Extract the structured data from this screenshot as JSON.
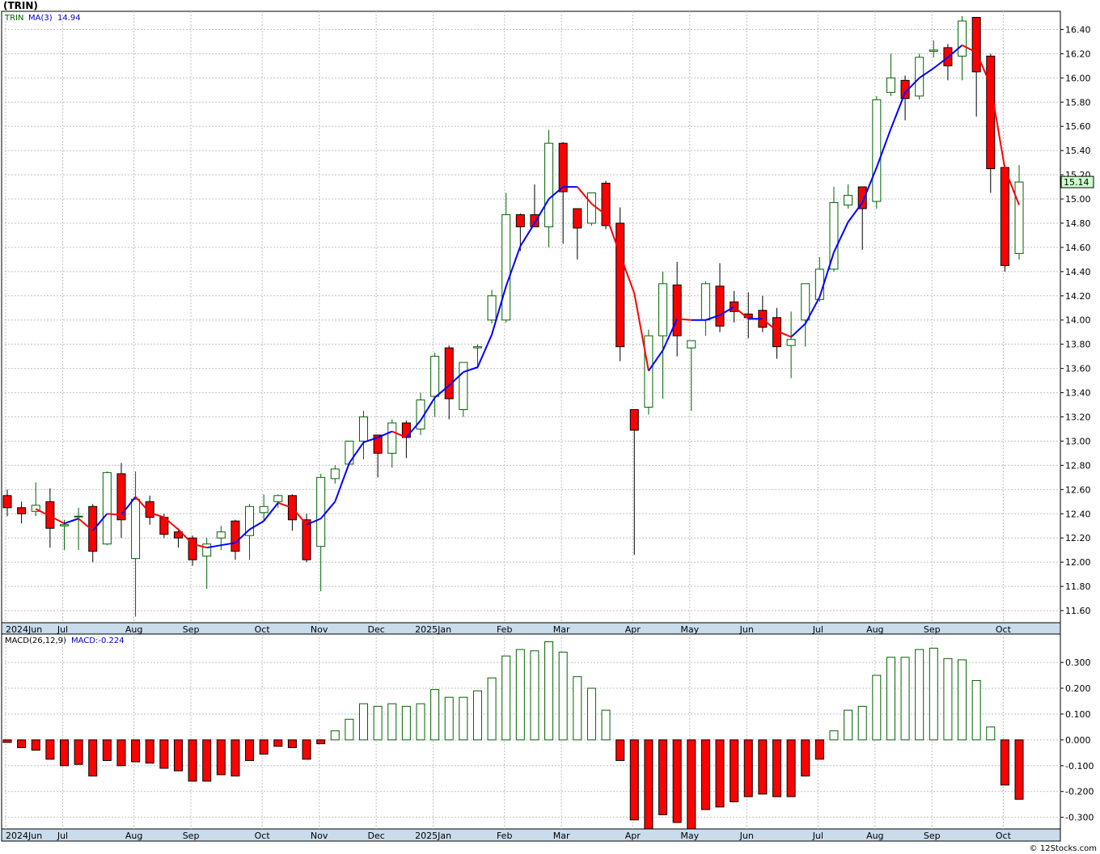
{
  "title": "(TRIN)",
  "credit": "© 12Stocks.com",
  "colors": {
    "up": "#006400",
    "down_fill": "#ff0000",
    "ma_up": "#0000ff",
    "ma_down": "#ff0000",
    "grid": "#c0c0c0",
    "axis_strip": "#c8dcec",
    "last_price_bg": "#ccffcc"
  },
  "chart_data": [
    {
      "type": "candlestick",
      "legend": {
        "symbol": "TRIN",
        "ma_label": "MA(3)",
        "ma_value": "14.94"
      },
      "last_price_label": "15.14",
      "y_ticks": [
        "16.40",
        "16.20",
        "16.00",
        "15.80",
        "15.60",
        "15.40",
        "15.20",
        "15.00",
        "14.80",
        "14.60",
        "14.40",
        "14.20",
        "14.00",
        "13.80",
        "13.60",
        "13.40",
        "13.20",
        "13.00",
        "12.80",
        "12.60",
        "12.40",
        "12.20",
        "12.00",
        "11.80",
        "11.60"
      ],
      "ylim": [
        11.5,
        16.55
      ],
      "x_month_labels": [
        {
          "label": "2024Jun",
          "week": 0
        },
        {
          "label": "Jul",
          "week": 4
        },
        {
          "label": "Aug",
          "week": 9
        },
        {
          "label": "Sep",
          "week": 13
        },
        {
          "label": "Oct",
          "week": 18
        },
        {
          "label": "Nov",
          "week": 22
        },
        {
          "label": "Dec",
          "week": 26
        },
        {
          "label": "2025Jan",
          "week": 30
        },
        {
          "label": "Feb",
          "week": 35
        },
        {
          "label": "Mar",
          "week": 39
        },
        {
          "label": "Apr",
          "week": 44
        },
        {
          "label": "May",
          "week": 48
        },
        {
          "label": "Jun",
          "week": 52
        },
        {
          "label": "Jul",
          "week": 57
        },
        {
          "label": "Aug",
          "week": 61
        },
        {
          "label": "Sep",
          "week": 65
        },
        {
          "label": "Oct",
          "week": 70
        }
      ],
      "ohlc": [
        [
          12.55,
          12.6,
          12.38,
          12.45
        ],
        [
          12.45,
          12.5,
          12.32,
          12.4
        ],
        [
          12.42,
          12.66,
          12.38,
          12.47
        ],
        [
          12.5,
          12.61,
          12.12,
          12.28
        ],
        [
          12.3,
          12.35,
          12.1,
          12.31
        ],
        [
          12.38,
          12.45,
          12.1,
          12.38
        ],
        [
          12.46,
          12.48,
          12.0,
          12.09
        ],
        [
          12.15,
          12.75,
          12.14,
          12.74
        ],
        [
          12.73,
          12.82,
          12.2,
          12.35
        ],
        [
          12.03,
          12.75,
          11.55,
          12.52
        ],
        [
          12.5,
          12.55,
          12.31,
          12.37
        ],
        [
          12.37,
          12.4,
          12.2,
          12.23
        ],
        [
          12.25,
          12.28,
          12.12,
          12.2
        ],
        [
          12.2,
          12.22,
          11.97,
          12.02
        ],
        [
          12.05,
          12.2,
          11.78,
          12.15
        ],
        [
          12.2,
          12.3,
          12.1,
          12.25
        ],
        [
          12.34,
          12.35,
          12.02,
          12.09
        ],
        [
          12.22,
          12.48,
          12.02,
          12.46
        ],
        [
          12.41,
          12.56,
          12.35,
          12.46
        ],
        [
          12.5,
          12.56,
          12.45,
          12.55
        ],
        [
          12.55,
          12.56,
          12.26,
          12.35
        ],
        [
          12.35,
          12.4,
          12.0,
          12.02
        ],
        [
          12.13,
          12.73,
          11.76,
          12.7
        ],
        [
          12.69,
          12.8,
          12.65,
          12.77
        ],
        [
          12.81,
          12.97,
          12.8,
          13.0
        ],
        [
          13.0,
          13.25,
          12.85,
          13.2
        ],
        [
          13.05,
          13.05,
          12.7,
          12.9
        ],
        [
          12.9,
          13.18,
          12.78,
          13.15
        ],
        [
          13.15,
          13.17,
          12.86,
          13.03
        ],
        [
          13.1,
          13.4,
          13.05,
          13.34
        ],
        [
          13.37,
          13.73,
          13.2,
          13.7
        ],
        [
          13.77,
          13.79,
          13.18,
          13.35
        ],
        [
          13.26,
          13.65,
          13.2,
          13.65
        ],
        [
          13.77,
          13.8,
          13.6,
          13.78
        ],
        [
          14.0,
          14.25,
          13.97,
          14.2
        ],
        [
          14.0,
          15.05,
          13.98,
          14.87
        ],
        [
          14.87,
          14.88,
          14.57,
          14.77
        ],
        [
          14.87,
          15.12,
          14.77,
          14.77
        ],
        [
          14.77,
          15.57,
          14.6,
          15.46
        ],
        [
          15.46,
          15.47,
          14.63,
          15.06
        ],
        [
          14.92,
          14.92,
          14.5,
          14.76
        ],
        [
          14.8,
          15.05,
          14.78,
          15.05
        ],
        [
          15.13,
          15.15,
          14.75,
          14.78
        ],
        [
          14.8,
          14.93,
          13.66,
          13.78
        ],
        [
          13.26,
          13.26,
          12.06,
          13.09
        ],
        [
          13.28,
          13.92,
          13.22,
          13.87
        ],
        [
          13.87,
          14.4,
          13.35,
          14.3
        ],
        [
          14.29,
          14.48,
          13.7,
          13.87
        ],
        [
          13.77,
          13.8,
          13.25,
          13.83
        ],
        [
          14.0,
          14.32,
          13.87,
          14.3
        ],
        [
          14.28,
          14.47,
          13.9,
          13.95
        ],
        [
          14.15,
          14.24,
          13.98,
          14.07
        ],
        [
          14.05,
          14.23,
          13.85,
          14.02
        ],
        [
          14.08,
          14.2,
          13.9,
          13.94
        ],
        [
          14.02,
          14.1,
          13.68,
          13.78
        ],
        [
          13.79,
          14.07,
          13.52,
          13.84
        ],
        [
          14.0,
          14.3,
          13.78,
          14.3
        ],
        [
          14.17,
          14.52,
          14.15,
          14.42
        ],
        [
          14.42,
          15.1,
          14.4,
          14.97
        ],
        [
          14.95,
          15.12,
          14.92,
          15.03
        ],
        [
          15.1,
          15.1,
          14.58,
          14.92
        ],
        [
          14.98,
          15.85,
          14.92,
          15.82
        ],
        [
          15.88,
          16.2,
          15.85,
          16.0
        ],
        [
          15.98,
          16.02,
          15.65,
          15.83
        ],
        [
          15.85,
          16.2,
          15.82,
          16.17
        ],
        [
          16.22,
          16.31,
          16.17,
          16.23
        ],
        [
          16.25,
          16.28,
          15.98,
          16.1
        ],
        [
          16.18,
          16.51,
          15.98,
          16.47
        ],
        [
          16.5,
          16.5,
          15.68,
          16.05
        ],
        [
          16.18,
          16.2,
          15.05,
          15.25
        ],
        [
          15.26,
          15.28,
          14.4,
          14.45
        ],
        [
          14.55,
          15.28,
          14.5,
          15.14
        ]
      ],
      "ma3": [
        null,
        null,
        12.44,
        12.38,
        12.32,
        12.36,
        12.26,
        12.4,
        12.39,
        12.54,
        12.41,
        12.37,
        12.27,
        12.15,
        12.12,
        12.14,
        12.16,
        12.27,
        12.34,
        12.49,
        12.45,
        12.31,
        12.36,
        12.5,
        12.82,
        12.99,
        13.03,
        13.08,
        13.03,
        13.17,
        13.36,
        13.46,
        13.57,
        13.61,
        13.88,
        14.28,
        14.61,
        14.8,
        15.0,
        15.1,
        15.1,
        14.96,
        14.87,
        14.54,
        14.22,
        13.58,
        13.75,
        14.01,
        14.0,
        14.0,
        14.04,
        14.11,
        14.01,
        14.01,
        13.91,
        13.86,
        13.97,
        14.19,
        14.56,
        14.81,
        14.97,
        15.26,
        15.58,
        15.88,
        16.0,
        16.08,
        16.17,
        16.27,
        16.21,
        15.94,
        15.25,
        14.95
      ]
    },
    {
      "type": "histogram",
      "legend": {
        "label": "MACD(26,12,9)",
        "value_label": "MACD:-0.224"
      },
      "y_ticks": [
        "0.300",
        "0.200",
        "0.100",
        "0.000",
        "-0.100",
        "-0.200",
        "-0.300"
      ],
      "ylim": [
        -0.345,
        0.41
      ],
      "values": [
        -0.01,
        -0.03,
        -0.04,
        -0.075,
        -0.1,
        -0.095,
        -0.14,
        -0.08,
        -0.1,
        -0.085,
        -0.09,
        -0.11,
        -0.12,
        -0.16,
        -0.16,
        -0.135,
        -0.14,
        -0.08,
        -0.055,
        -0.025,
        -0.03,
        -0.075,
        -0.015,
        0.035,
        0.08,
        0.14,
        0.13,
        0.14,
        0.13,
        0.14,
        0.195,
        0.165,
        0.165,
        0.19,
        0.24,
        0.325,
        0.35,
        0.345,
        0.38,
        0.34,
        0.245,
        0.2,
        0.115,
        -0.08,
        -0.31,
        -0.345,
        -0.29,
        -0.32,
        -0.345,
        -0.27,
        -0.26,
        -0.24,
        -0.22,
        -0.21,
        -0.22,
        -0.22,
        -0.14,
        -0.075,
        0.035,
        0.115,
        0.13,
        0.25,
        0.32,
        0.32,
        0.35,
        0.355,
        0.315,
        0.31,
        0.23,
        0.05,
        -0.175,
        -0.23
      ]
    }
  ]
}
